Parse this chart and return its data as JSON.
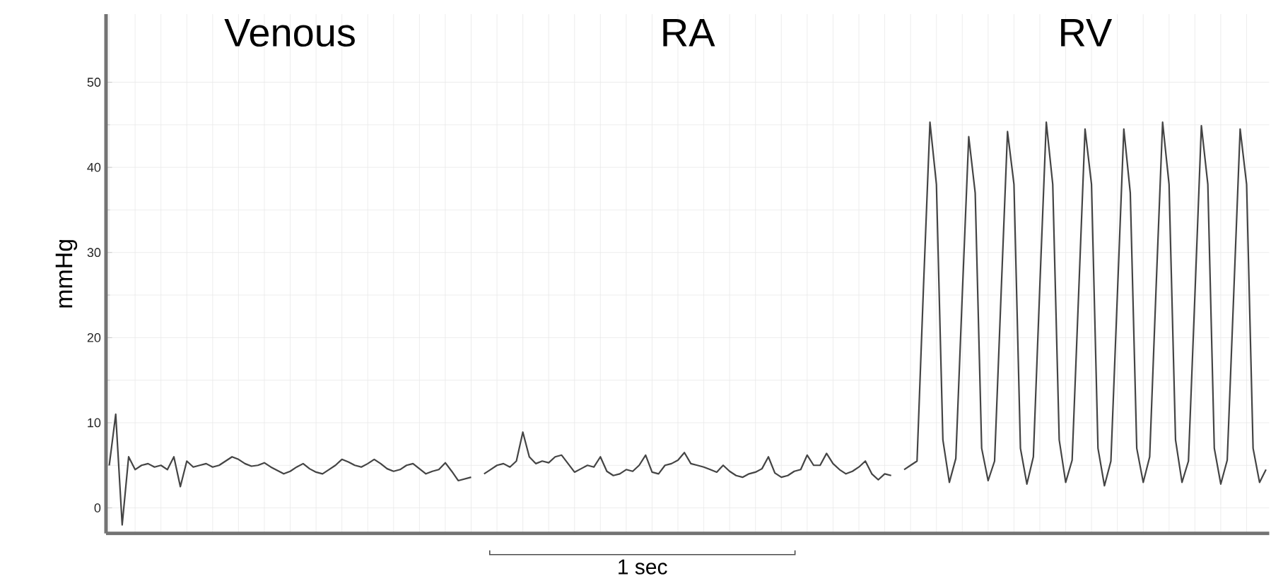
{
  "chart_data": {
    "type": "line",
    "ylabel": "mmHg",
    "ylim": [
      -3,
      58
    ],
    "yticks": [
      0,
      10,
      20,
      30,
      40,
      50
    ],
    "grid": true,
    "tick_labels": "y",
    "color": "#444444",
    "annotations": [
      "Venous",
      "RA",
      "RV",
      "1 sec"
    ],
    "categories": [
      null,
      null,
      null,
      null,
      null,
      null,
      null,
      null,
      null,
      null,
      null,
      null,
      null,
      null,
      null,
      null,
      null,
      null,
      null,
      null,
      null,
      null,
      null,
      null,
      null,
      null,
      null,
      null,
      null,
      null,
      null,
      null,
      null,
      null,
      null,
      null,
      null,
      null,
      null,
      null,
      null,
      null,
      null,
      null,
      null,
      null,
      null,
      null,
      null,
      null,
      null,
      null,
      null,
      null,
      null,
      null,
      null,
      null,
      null,
      null,
      null,
      null,
      null,
      null,
      null,
      null,
      null,
      null,
      null,
      null,
      null,
      null,
      null,
      null,
      null,
      null,
      null,
      null,
      null,
      null,
      null,
      null,
      null,
      null,
      null,
      null,
      null,
      null,
      null,
      null,
      null,
      null,
      null,
      null,
      null,
      null,
      null,
      null,
      null,
      null,
      null,
      null,
      null,
      null,
      null,
      null,
      null,
      null,
      null,
      null,
      null,
      null,
      null,
      null,
      null,
      null,
      null,
      null,
      null,
      null,
      null,
      null,
      null,
      null,
      null,
      null,
      null,
      null,
      null,
      null,
      null,
      null,
      null,
      null,
      null,
      null,
      null,
      null,
      null,
      null,
      null,
      null,
      null,
      null,
      null,
      null,
      null,
      null,
      null,
      null,
      null,
      null,
      null,
      null,
      null,
      null,
      null,
      null,
      null,
      null,
      null,
      null,
      null,
      null,
      null,
      null,
      null,
      null,
      null,
      null,
      null,
      null,
      null,
      null,
      null,
      null,
      null,
      null,
      null,
      null
    ],
    "values": [
      5,
      11,
      -2,
      6,
      4.5,
      5,
      5.2,
      4.8,
      5,
      4.5,
      6,
      2.5,
      5.5,
      4.8,
      5,
      5.2,
      4.8,
      5,
      5.5,
      6,
      5.7,
      5.2,
      4.9,
      5,
      5.3,
      4.8,
      4.4,
      4,
      4.3,
      4.8,
      5.2,
      4.6,
      4.2,
      4,
      4.5,
      5,
      5.7,
      5.4,
      5,
      4.8,
      5.2,
      5.7,
      5.2,
      4.6,
      4.3,
      4.5,
      5,
      5.2,
      4.6,
      4,
      4.3,
      4.5,
      5.3,
      4.3,
      3.2,
      3.4,
      3.6,
      null,
      4,
      4.5,
      5,
      5.2,
      4.8,
      5.5,
      8.9,
      6,
      5.2,
      5.5,
      5.3,
      6,
      6.2,
      5.2,
      4.2,
      4.6,
      5,
      4.8,
      6,
      4.3,
      3.8,
      4,
      4.5,
      4.3,
      5,
      6.2,
      4.2,
      4,
      5,
      5.2,
      5.6,
      6.5,
      5.2,
      5,
      4.8,
      4.5,
      4.2,
      5,
      4.3,
      3.8,
      3.6,
      4,
      4.2,
      4.6,
      6,
      4.1,
      3.6,
      3.8,
      4.3,
      4.5,
      6.2,
      5,
      5,
      6.4,
      5.2,
      4.5,
      4,
      4.3,
      4.8,
      5.5,
      4,
      3.3,
      4,
      3.8,
      null,
      4.5,
      5,
      5.5,
      26,
      45.3,
      38,
      8,
      3,
      5.8,
      25,
      43.6,
      37,
      7,
      3.2,
      5.5,
      25,
      44.2,
      38,
      7,
      2.8,
      6,
      26,
      45.3,
      38,
      8,
      3,
      5.6,
      25,
      44.5,
      38,
      7,
      2.6,
      5.5,
      25,
      44.5,
      37,
      7,
      3,
      6,
      26,
      45.3,
      38,
      8,
      3,
      5.5,
      25,
      44.9,
      38,
      7,
      2.8,
      5.6,
      25,
      44.5,
      38,
      7,
      3,
      4.5
    ]
  }
}
